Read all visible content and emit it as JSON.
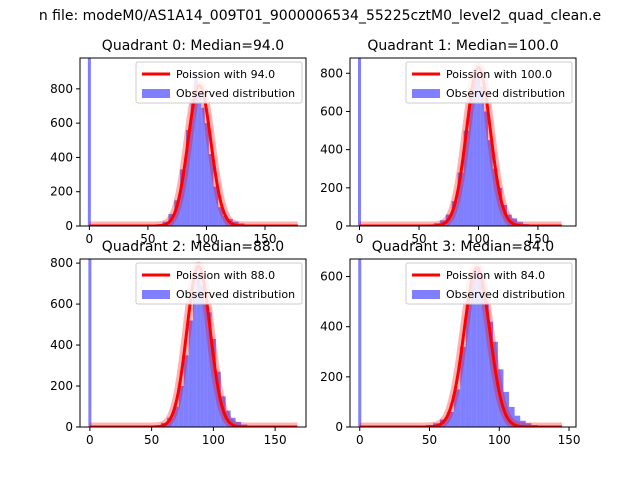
{
  "figure": {
    "suptitle": "n file: modeM0/AS1A14_009T01_9000006534_55225cztM0_level2_quad_clean.e"
  },
  "colors": {
    "poisson": "#ff0000",
    "observed": "#0000ff",
    "axes": "#000000",
    "legend_border": "#cccccc"
  },
  "chart_data": [
    {
      "type": "bar",
      "title": "Quadrant 0: Median=94.0",
      "median": 94.0,
      "legend": {
        "position": "top-right",
        "poisson_label": "Poission with 94.0",
        "observed_label": "Observed distribution"
      },
      "xlim": [
        -8,
        185
      ],
      "ylim": [
        0,
        980
      ],
      "xticks": [
        0,
        50,
        100,
        150
      ],
      "yticks": [
        0,
        200,
        400,
        600,
        800
      ],
      "poisson_mean": 94.0,
      "poisson_scale": 820,
      "poisson_x_range": [
        0,
        178
      ],
      "spike": {
        "x": 0,
        "height": 980
      },
      "hist": [
        {
          "x": 50,
          "y": 2
        },
        {
          "x": 55,
          "y": 5
        },
        {
          "x": 60,
          "y": 10
        },
        {
          "x": 65,
          "y": 25
        },
        {
          "x": 70,
          "y": 70
        },
        {
          "x": 75,
          "y": 150
        },
        {
          "x": 80,
          "y": 330
        },
        {
          "x": 85,
          "y": 560
        },
        {
          "x": 88,
          "y": 740
        },
        {
          "x": 91,
          "y": 880
        },
        {
          "x": 94,
          "y": 780
        },
        {
          "x": 97,
          "y": 690
        },
        {
          "x": 100,
          "y": 600
        },
        {
          "x": 104,
          "y": 420
        },
        {
          "x": 108,
          "y": 230
        },
        {
          "x": 112,
          "y": 110
        },
        {
          "x": 116,
          "y": 60
        },
        {
          "x": 120,
          "y": 40
        },
        {
          "x": 125,
          "y": 25
        },
        {
          "x": 130,
          "y": 15
        },
        {
          "x": 135,
          "y": 8
        },
        {
          "x": 140,
          "y": 4
        }
      ]
    },
    {
      "type": "bar",
      "title": "Quadrant 1: Median=100.0",
      "median": 100.0,
      "legend": {
        "position": "top-right",
        "poisson_label": "Poission with 100.0",
        "observed_label": "Observed distribution"
      },
      "xlim": [
        -8,
        182
      ],
      "ylim": [
        0,
        880
      ],
      "xticks": [
        0,
        50,
        100,
        150
      ],
      "yticks": [
        0,
        200,
        400,
        600,
        800
      ],
      "poisson_mean": 100.0,
      "poisson_scale": 830,
      "poisson_x_range": [
        0,
        170
      ],
      "spike": {
        "x": 0,
        "height": 880
      },
      "hist": [
        {
          "x": 50,
          "y": 2
        },
        {
          "x": 55,
          "y": 4
        },
        {
          "x": 60,
          "y": 8
        },
        {
          "x": 65,
          "y": 15
        },
        {
          "x": 70,
          "y": 30
        },
        {
          "x": 75,
          "y": 60
        },
        {
          "x": 80,
          "y": 130
        },
        {
          "x": 85,
          "y": 280
        },
        {
          "x": 90,
          "y": 500
        },
        {
          "x": 94,
          "y": 720
        },
        {
          "x": 97,
          "y": 820
        },
        {
          "x": 100,
          "y": 780
        },
        {
          "x": 103,
          "y": 730
        },
        {
          "x": 106,
          "y": 600
        },
        {
          "x": 110,
          "y": 450
        },
        {
          "x": 114,
          "y": 300
        },
        {
          "x": 118,
          "y": 200
        },
        {
          "x": 122,
          "y": 110
        },
        {
          "x": 126,
          "y": 60
        },
        {
          "x": 130,
          "y": 40
        },
        {
          "x": 135,
          "y": 20
        },
        {
          "x": 140,
          "y": 10
        },
        {
          "x": 145,
          "y": 5
        }
      ]
    },
    {
      "type": "bar",
      "title": "Quadrant 2: Median=88.0",
      "median": 88.0,
      "legend": {
        "position": "top-right",
        "poisson_label": "Poission with 88.0",
        "observed_label": "Observed distribution"
      },
      "xlim": [
        -8,
        175
      ],
      "ylim": [
        0,
        820
      ],
      "xticks": [
        0,
        50,
        100,
        150
      ],
      "yticks": [
        0,
        200,
        400,
        600,
        800
      ],
      "poisson_mean": 88.0,
      "poisson_scale": 785,
      "poisson_x_range": [
        0,
        168
      ],
      "spike": {
        "x": 0,
        "height": 820
      },
      "hist": [
        {
          "x": 50,
          "y": 3
        },
        {
          "x": 55,
          "y": 8
        },
        {
          "x": 60,
          "y": 20
        },
        {
          "x": 65,
          "y": 45
        },
        {
          "x": 70,
          "y": 100
        },
        {
          "x": 74,
          "y": 200
        },
        {
          "x": 78,
          "y": 350
        },
        {
          "x": 82,
          "y": 520
        },
        {
          "x": 85,
          "y": 650
        },
        {
          "x": 88,
          "y": 740
        },
        {
          "x": 91,
          "y": 690
        },
        {
          "x": 94,
          "y": 600
        },
        {
          "x": 97,
          "y": 560
        },
        {
          "x": 100,
          "y": 430
        },
        {
          "x": 104,
          "y": 270
        },
        {
          "x": 108,
          "y": 150
        },
        {
          "x": 112,
          "y": 80
        },
        {
          "x": 116,
          "y": 45
        },
        {
          "x": 120,
          "y": 25
        },
        {
          "x": 125,
          "y": 12
        },
        {
          "x": 130,
          "y": 6
        }
      ]
    },
    {
      "type": "bar",
      "title": "Quadrant 3: Median=84.0",
      "median": 84.0,
      "legend": {
        "position": "top-right",
        "poisson_label": "Poission with 84.0",
        "observed_label": "Observed distribution"
      },
      "xlim": [
        -7,
        155
      ],
      "ylim": [
        0,
        670
      ],
      "xticks": [
        0,
        50,
        100,
        150
      ],
      "yticks": [
        0,
        200,
        400,
        600
      ],
      "poisson_mean": 84.0,
      "poisson_scale": 635,
      "poisson_x_range": [
        0,
        145
      ],
      "spike": {
        "x": 0,
        "height": 670
      },
      "hist": [
        {
          "x": 45,
          "y": 2
        },
        {
          "x": 50,
          "y": 8
        },
        {
          "x": 55,
          "y": 15
        },
        {
          "x": 60,
          "y": 30
        },
        {
          "x": 65,
          "y": 60
        },
        {
          "x": 70,
          "y": 150
        },
        {
          "x": 74,
          "y": 320
        },
        {
          "x": 78,
          "y": 500
        },
        {
          "x": 82,
          "y": 610
        },
        {
          "x": 85,
          "y": 640
        },
        {
          "x": 88,
          "y": 580
        },
        {
          "x": 91,
          "y": 500
        },
        {
          "x": 94,
          "y": 420
        },
        {
          "x": 97,
          "y": 340
        },
        {
          "x": 101,
          "y": 230
        },
        {
          "x": 105,
          "y": 140
        },
        {
          "x": 109,
          "y": 80
        },
        {
          "x": 113,
          "y": 45
        },
        {
          "x": 117,
          "y": 25
        },
        {
          "x": 121,
          "y": 15
        },
        {
          "x": 125,
          "y": 8
        },
        {
          "x": 130,
          "y": 4
        }
      ]
    }
  ]
}
